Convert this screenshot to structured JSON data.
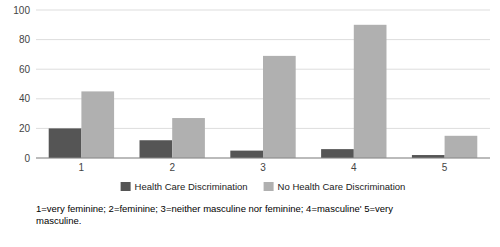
{
  "chart_data": {
    "type": "bar",
    "categories": [
      "1",
      "2",
      "3",
      "4",
      "5"
    ],
    "series": [
      {
        "name": "Health Care Discrimination",
        "color": "#555555",
        "values": [
          20,
          12,
          5,
          6,
          2
        ]
      },
      {
        "name": "No Health Care Discrimination",
        "color": "#b0b0b0",
        "values": [
          45,
          27,
          69,
          90,
          15
        ]
      }
    ],
    "ylim": [
      0,
      100
    ],
    "yticks": [
      0,
      20,
      40,
      60,
      80,
      100
    ],
    "grid": true,
    "legend": "bottom",
    "annotations": [
      "1=very feminine; 2=feminine; 3=neither masculine nor feminine; 4=masculine' 5=very",
      "masculine."
    ]
  }
}
